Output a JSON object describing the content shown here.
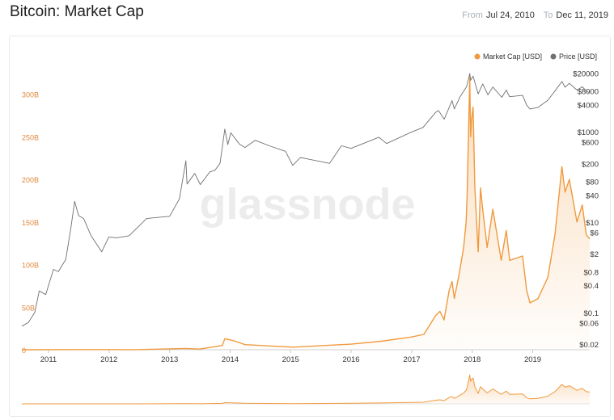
{
  "page": {
    "title": "Bitcoin: Market Cap",
    "from_label": "From",
    "from_date": "Jul 24, 2010",
    "to_label": "To",
    "to_date": "Dec 11, 2019",
    "watermark": "glassnode"
  },
  "colors": {
    "market_cap": "#f09a3e",
    "price": "#707070",
    "left_axis_text": "#e0883a",
    "right_axis_text": "#333333"
  },
  "chart_data": {
    "type": "line",
    "x": {
      "labels": [
        "2011",
        "2012",
        "2013",
        "2014",
        "2015",
        "2016",
        "2017",
        "2018",
        "2019"
      ],
      "range": [
        "2010-07-24",
        "2019-12-11"
      ]
    },
    "legend": {
      "position": "top-right"
    },
    "series": [
      {
        "name": "Market Cap [USD]",
        "axis": "left",
        "style": "area",
        "scale": "linear",
        "ylim": [
          0,
          330
        ],
        "ticks": [
          0,
          50,
          100,
          150,
          200,
          250,
          300
        ],
        "tick_labels": [
          "0",
          "50B",
          "100B",
          "150B",
          "200B",
          "250B",
          "300B"
        ],
        "points": [
          [
            "2010-07-24",
            0.0003
          ],
          [
            "2011-06-08",
            0.2
          ],
          [
            "2012-06-01",
            0.06
          ],
          [
            "2013-04-08",
            1.5
          ],
          [
            "2013-07-01",
            0.8
          ],
          [
            "2013-11-15",
            5
          ],
          [
            "2013-11-30",
            13
          ],
          [
            "2014-01-15",
            11
          ],
          [
            "2014-04-01",
            6
          ],
          [
            "2015-01-15",
            3
          ],
          [
            "2016-01-01",
            6.5
          ],
          [
            "2016-07-01",
            10
          ],
          [
            "2017-01-01",
            15
          ],
          [
            "2017-03-15",
            18
          ],
          [
            "2017-05-25",
            40
          ],
          [
            "2017-06-20",
            45
          ],
          [
            "2017-07-15",
            35
          ],
          [
            "2017-08-15",
            70
          ],
          [
            "2017-09-01",
            80
          ],
          [
            "2017-09-15",
            60
          ],
          [
            "2017-10-15",
            90
          ],
          [
            "2017-11-10",
            120
          ],
          [
            "2017-11-25",
            150
          ],
          [
            "2017-12-01",
            180
          ],
          [
            "2017-12-17",
            320
          ],
          [
            "2017-12-22",
            250
          ],
          [
            "2017-12-28",
            270
          ],
          [
            "2018-01-06",
            285
          ],
          [
            "2018-01-17",
            190
          ],
          [
            "2018-02-06",
            115
          ],
          [
            "2018-02-20",
            190
          ],
          [
            "2018-03-05",
            165
          ],
          [
            "2018-04-01",
            120
          ],
          [
            "2018-05-05",
            165
          ],
          [
            "2018-06-25",
            105
          ],
          [
            "2018-07-25",
            140
          ],
          [
            "2018-08-15",
            105
          ],
          [
            "2018-11-01",
            110
          ],
          [
            "2018-11-25",
            70
          ],
          [
            "2018-12-15",
            55
          ],
          [
            "2019-02-01",
            60
          ],
          [
            "2019-04-02",
            85
          ],
          [
            "2019-05-15",
            135
          ],
          [
            "2019-06-26",
            215
          ],
          [
            "2019-07-15",
            185
          ],
          [
            "2019-08-10",
            200
          ],
          [
            "2019-09-25",
            150
          ],
          [
            "2019-10-27",
            170
          ],
          [
            "2019-11-20",
            135
          ],
          [
            "2019-12-11",
            130
          ]
        ]
      },
      {
        "name": "Price [USD]",
        "axis": "right",
        "style": "line",
        "scale": "log",
        "ylim": [
          0.015,
          25000
        ],
        "ticks": [
          0.02,
          0.06,
          0.1,
          0.4,
          0.8,
          2,
          6,
          10,
          40,
          80,
          200,
          600,
          1000,
          4000,
          8000,
          20000
        ],
        "tick_labels": [
          "$0.02",
          "$0.06",
          "$0.1",
          "$0.4",
          "$0.8",
          "$2",
          "$6",
          "$10",
          "$40",
          "$80",
          "$200",
          "$600",
          "$1000",
          "$4000",
          "$8000",
          "$20000"
        ],
        "points": [
          [
            "2010-07-24",
            0.05
          ],
          [
            "2010-09-01",
            0.06
          ],
          [
            "2010-10-10",
            0.1
          ],
          [
            "2010-11-06",
            0.3
          ],
          [
            "2010-12-15",
            0.25
          ],
          [
            "2011-01-31",
            0.9
          ],
          [
            "2011-03-01",
            0.8
          ],
          [
            "2011-04-15",
            1.5
          ],
          [
            "2011-05-15",
            7
          ],
          [
            "2011-06-08",
            29
          ],
          [
            "2011-07-01",
            14
          ],
          [
            "2011-08-01",
            12
          ],
          [
            "2011-09-15",
            5
          ],
          [
            "2011-11-18",
            2.2
          ],
          [
            "2011-12-31",
            4.7
          ],
          [
            "2012-02-15",
            4.5
          ],
          [
            "2012-05-01",
            5
          ],
          [
            "2012-08-15",
            12
          ],
          [
            "2012-10-01",
            12.5
          ],
          [
            "2013-01-01",
            13.5
          ],
          [
            "2013-03-01",
            33
          ],
          [
            "2013-04-09",
            230
          ],
          [
            "2013-04-16",
            70
          ],
          [
            "2013-06-01",
            120
          ],
          [
            "2013-07-05",
            68
          ],
          [
            "2013-09-01",
            130
          ],
          [
            "2013-10-01",
            140
          ],
          [
            "2013-11-01",
            200
          ],
          [
            "2013-11-30",
            1150
          ],
          [
            "2013-12-18",
            520
          ],
          [
            "2014-01-05",
            950
          ],
          [
            "2014-02-25",
            540
          ],
          [
            "2014-04-01",
            450
          ],
          [
            "2014-06-01",
            650
          ],
          [
            "2014-09-01",
            480
          ],
          [
            "2014-12-01",
            370
          ],
          [
            "2015-01-14",
            180
          ],
          [
            "2015-03-01",
            270
          ],
          [
            "2015-08-24",
            200
          ],
          [
            "2015-11-04",
            490
          ],
          [
            "2016-01-01",
            430
          ],
          [
            "2016-06-17",
            760
          ],
          [
            "2016-08-02",
            550
          ],
          [
            "2017-01-03",
            1000
          ],
          [
            "2017-03-10",
            1250
          ],
          [
            "2017-05-25",
            2700
          ],
          [
            "2017-06-11",
            2950
          ],
          [
            "2017-07-16",
            1900
          ],
          [
            "2017-09-01",
            4900
          ],
          [
            "2017-09-15",
            3200
          ],
          [
            "2017-10-20",
            6000
          ],
          [
            "2017-11-28",
            10000
          ],
          [
            "2017-12-17",
            19500
          ],
          [
            "2017-12-22",
            13800
          ],
          [
            "2018-01-06",
            17100
          ],
          [
            "2018-02-06",
            6900
          ],
          [
            "2018-03-05",
            11500
          ],
          [
            "2018-04-06",
            6600
          ],
          [
            "2018-05-05",
            9800
          ],
          [
            "2018-06-29",
            5800
          ],
          [
            "2018-07-25",
            8400
          ],
          [
            "2018-08-14",
            6000
          ],
          [
            "2018-11-01",
            6400
          ],
          [
            "2018-11-25",
            3900
          ],
          [
            "2018-12-15",
            3200
          ],
          [
            "2019-02-01",
            3450
          ],
          [
            "2019-04-02",
            5000
          ],
          [
            "2019-05-15",
            8000
          ],
          [
            "2019-06-26",
            13000
          ],
          [
            "2019-07-15",
            9700
          ],
          [
            "2019-08-10",
            11800
          ],
          [
            "2019-09-25",
            8400
          ],
          [
            "2019-10-27",
            9900
          ],
          [
            "2019-11-20",
            8100
          ],
          [
            "2019-12-11",
            7200
          ]
        ]
      }
    ]
  }
}
